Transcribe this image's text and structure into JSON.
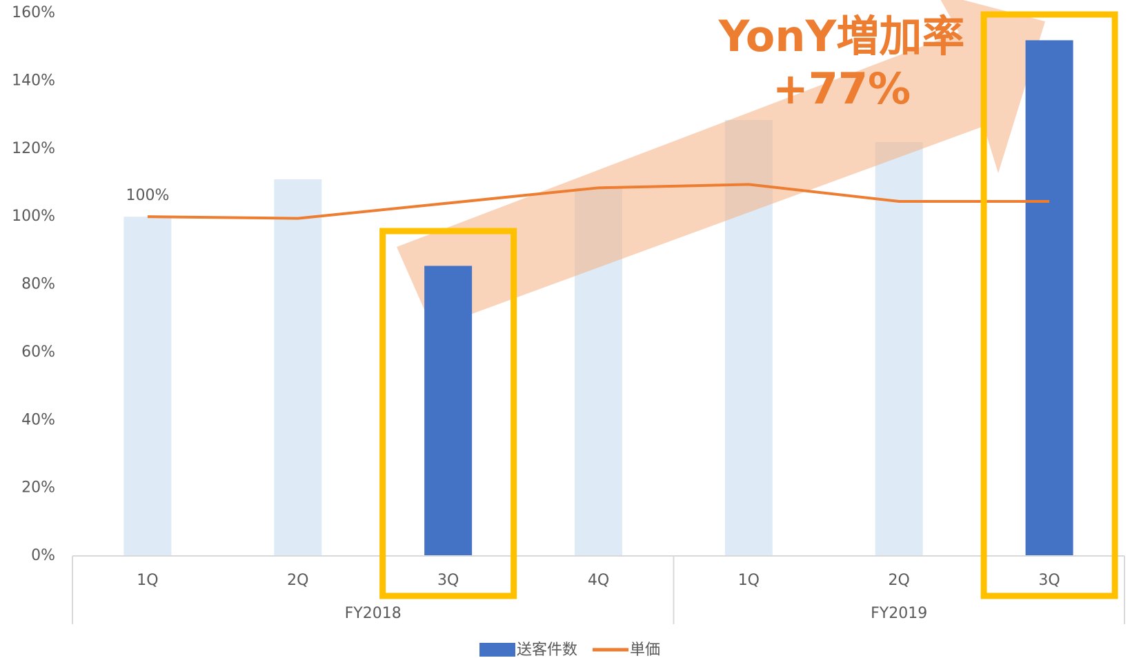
{
  "chart_data": {
    "type": "bar_line",
    "groups": [
      {
        "name": "FY2018",
        "categories": [
          "1Q",
          "2Q",
          "3Q",
          "4Q"
        ]
      },
      {
        "name": "FY2019",
        "categories": [
          "1Q",
          "2Q",
          "3Q"
        ]
      }
    ],
    "series": [
      {
        "name": "送客件数",
        "type": "bar",
        "color": "#4472c4",
        "values": [
          100,
          111,
          85.5,
          108.5,
          128.5,
          122,
          152
        ],
        "bar_colors": [
          "#deebf7",
          "#deebf7",
          "#4472c4",
          "#deebf7",
          "#deebf7",
          "#deebf7",
          "#4472c4"
        ]
      },
      {
        "name": "単価",
        "type": "line",
        "color": "#ed7d31",
        "values": [
          100,
          99.5,
          104,
          108.5,
          109.5,
          104.5,
          104.5
        ],
        "value_labels": [
          "100%",
          null,
          null,
          null,
          null,
          null,
          null
        ]
      }
    ],
    "ylim": [
      0,
      160
    ],
    "yticks": [
      {
        "value": 0,
        "label": "0%"
      },
      {
        "value": 20,
        "label": "20%"
      },
      {
        "value": 40,
        "label": "40%"
      },
      {
        "value": 60,
        "label": "60%"
      },
      {
        "value": 80,
        "label": "80%"
      },
      {
        "value": 100,
        "label": "100%"
      },
      {
        "value": 120,
        "label": "120%"
      },
      {
        "value": 140,
        "label": "140%"
      },
      {
        "value": 160,
        "label": "160%"
      }
    ],
    "annotations": [
      "YonY増加率",
      "+77%"
    ],
    "highlight": [
      2,
      6
    ],
    "highlight_color": "#ffc000",
    "legend": "bottom"
  }
}
